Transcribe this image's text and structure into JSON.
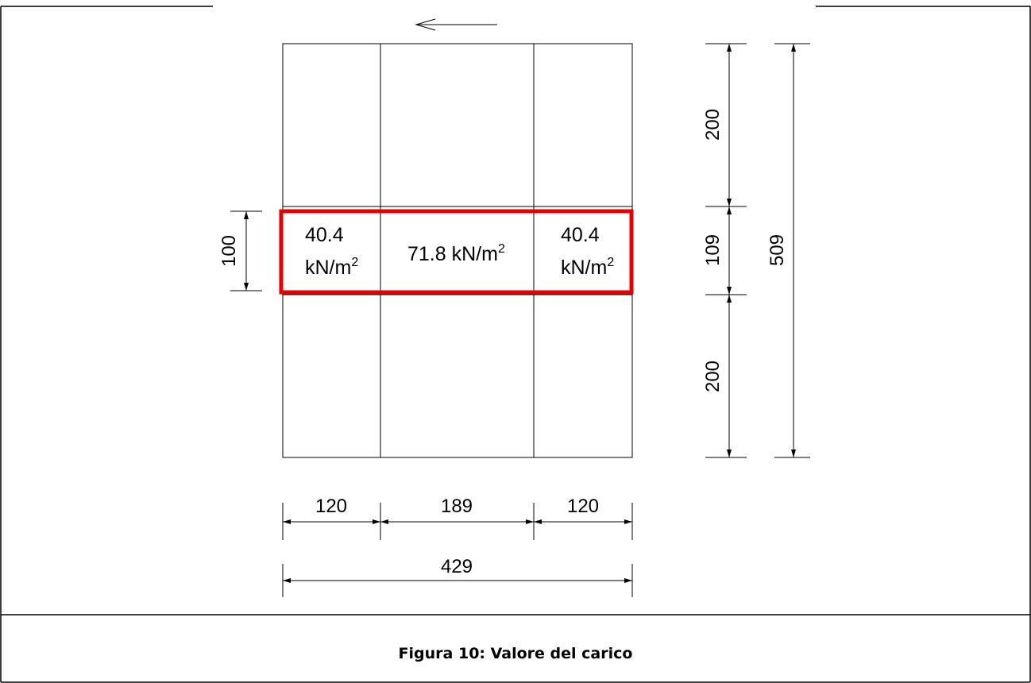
{
  "caption": "Figura 10: Valore del carico",
  "loads": {
    "left": {
      "value": "40.4",
      "unit": "kN/m",
      "exp": "2"
    },
    "center": {
      "value": "71.8 kN/m",
      "exp": "2"
    },
    "right": {
      "value": "40.4",
      "unit": "kN/m",
      "exp": "2"
    }
  },
  "dimensions": {
    "strip_height": "100",
    "right_top": "200",
    "right_middle": "109",
    "right_bottom": "200",
    "total_height": "509",
    "bottom_left": "120",
    "bottom_middle": "189",
    "bottom_right": "120",
    "total_width": "429"
  },
  "colors": {
    "highlight": "#e60000",
    "lines": "#000000"
  }
}
